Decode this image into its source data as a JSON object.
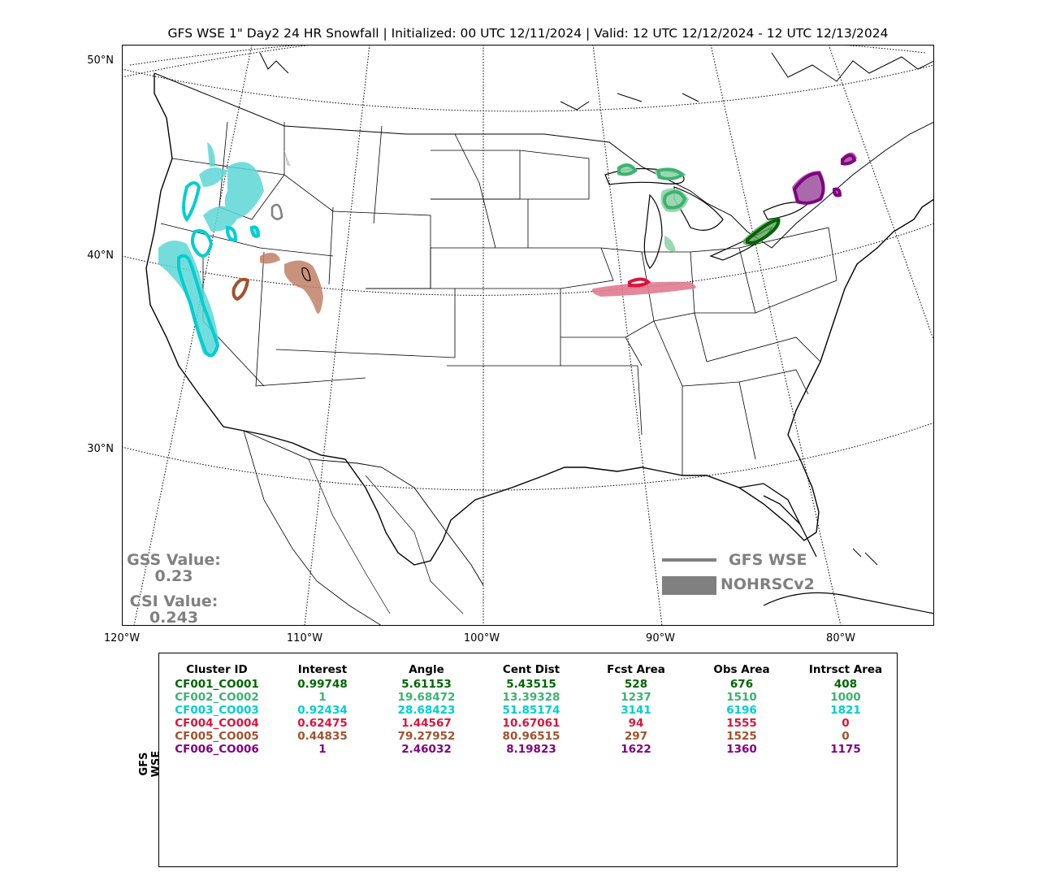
{
  "title": "GFS WSE 1\" Day2 24 HR Snowfall | Initialized: 00 UTC 12/11/2024 | Valid: 12 UTC 12/12/2024 - 12 UTC 12/13/2024",
  "lat_labels": [
    "50°N",
    "40°N",
    "30°N"
  ],
  "lon_labels": [
    "120°W",
    "110°W",
    "100°W",
    "90°W",
    "80°W"
  ],
  "scores": {
    "gss_label": "GSS Value:",
    "gss_value": "0.23",
    "csi_label": "CSI Value:",
    "csi_value": "0.243"
  },
  "legend": {
    "forecast": "GFS WSE",
    "observed": "NOHRSCv2",
    "color": "#808080"
  },
  "table": {
    "ylabel": "GFS WSE",
    "headers": [
      "Cluster ID",
      "Interest",
      "Angle",
      "Cent Dist",
      "Fcst Area",
      "Obs Area",
      "Intrsct Area"
    ],
    "rows": [
      {
        "color": "#006400",
        "cells": [
          "CF001_CO001",
          "0.99748",
          "5.61153",
          "5.43515",
          "528",
          "676",
          "408"
        ]
      },
      {
        "color": "#3cb371",
        "cells": [
          "CF002_CO002",
          "1",
          "19.68472",
          "13.39328",
          "1237",
          "1510",
          "1000"
        ]
      },
      {
        "color": "#00ced1",
        "cells": [
          "CF003_CO003",
          "0.92434",
          "28.68423",
          "51.85174",
          "3141",
          "6196",
          "1821"
        ]
      },
      {
        "color": "#dc143c",
        "cells": [
          "CF004_CO004",
          "0.62475",
          "1.44567",
          "10.67061",
          "94",
          "1555",
          "0"
        ]
      },
      {
        "color": "#a0522d",
        "cells": [
          "CF005_CO005",
          "0.44835",
          "79.27952",
          "80.96515",
          "297",
          "1525",
          "0"
        ]
      },
      {
        "color": "#800080",
        "cells": [
          "CF006_CO006",
          "1",
          "2.46032",
          "8.19823",
          "1622",
          "1360",
          "1175"
        ]
      }
    ]
  }
}
